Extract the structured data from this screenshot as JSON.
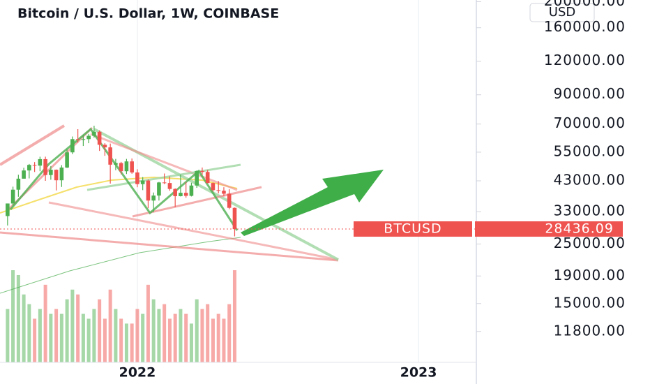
{
  "chart_data": {
    "type": "candlestick",
    "title": "Bitcoin / U.S. Dollar, 1W, COINBASE",
    "currency": "USD",
    "symbol": "BTCUSD",
    "last_price": 28436.09,
    "log_scale": true,
    "xgrid": true,
    "ygrid": false,
    "up_color": "#4caf50",
    "down_color": "#ef5350",
    "xlim": [
      -1.4,
      86.7
    ],
    "xticks": [
      {
        "value": 24,
        "label": "2022"
      },
      {
        "value": 76,
        "label": "2023"
      }
    ],
    "ylim": [
      9000,
      203000
    ],
    "yticks": [
      {
        "value": 200000,
        "label": "200000.00"
      },
      {
        "value": 160000,
        "label": "160000.00"
      },
      {
        "value": 120000,
        "label": "120000.00"
      },
      {
        "value": 90000,
        "label": "90000.00"
      },
      {
        "value": 70000,
        "label": "70000.00"
      },
      {
        "value": 55000,
        "label": "55000.00"
      },
      {
        "value": 43000,
        "label": "43000.00"
      },
      {
        "value": 33000,
        "label": "33000.00"
      },
      {
        "value": 25000,
        "label": "25000.00"
      },
      {
        "value": 19000,
        "label": "19000.00"
      },
      {
        "value": 15000,
        "label": "15000.00"
      },
      {
        "value": 11800,
        "label": "11800.00"
      }
    ],
    "open": [
      31780,
      35400,
      39850,
      43800,
      47000,
      49300,
      49000,
      51800,
      45200,
      47300,
      43200,
      48200,
      54900,
      61500,
      61100,
      61500,
      63300,
      65500,
      58600,
      57300,
      49400,
      50100,
      46700,
      50800,
      46200,
      41800,
      43100,
      36300,
      37900,
      42400,
      42200,
      40100,
      37700,
      38800,
      37800,
      41300,
      46800,
      46400,
      42200,
      39700,
      39500,
      38500,
      34100
    ],
    "high": [
      35400,
      40900,
      45300,
      48100,
      49700,
      50500,
      52900,
      52900,
      48800,
      47400,
      49200,
      56600,
      62900,
      67000,
      63700,
      64300,
      69000,
      66300,
      59400,
      59200,
      51900,
      50600,
      51900,
      52100,
      47500,
      44400,
      43500,
      38900,
      42600,
      45800,
      44700,
      40300,
      45400,
      42600,
      42300,
      47000,
      48200,
      47200,
      42400,
      42900,
      40700,
      40000,
      34200
    ],
    "low": [
      29300,
      34700,
      37500,
      43800,
      43900,
      46400,
      46700,
      43000,
      43400,
      39600,
      40800,
      48000,
      54100,
      59700,
      58000,
      59400,
      62300,
      55600,
      53300,
      42000,
      47100,
      45500,
      45600,
      45700,
      40700,
      39700,
      34000,
      32900,
      36300,
      41800,
      39500,
      34300,
      37600,
      37200,
      37600,
      40500,
      45200,
      42100,
      39200,
      38600,
      37700,
      33700,
      26700
    ],
    "close": [
      35400,
      39850,
      43800,
      47000,
      49300,
      49000,
      51800,
      45200,
      47300,
      43200,
      48200,
      54900,
      61500,
      61100,
      61500,
      63300,
      65500,
      58600,
      57300,
      49400,
      50100,
      46700,
      50800,
      46200,
      41800,
      43100,
      36300,
      37900,
      42400,
      42200,
      40100,
      37700,
      38800,
      37800,
      41300,
      46800,
      46400,
      42200,
      39700,
      39500,
      38500,
      34100,
      28436.09
    ],
    "volume": [
      55,
      95,
      90,
      70,
      60,
      45,
      55,
      80,
      50,
      55,
      50,
      65,
      75,
      70,
      50,
      45,
      55,
      65,
      45,
      75,
      55,
      45,
      40,
      40,
      55,
      50,
      80,
      65,
      55,
      60,
      45,
      50,
      55,
      50,
      40,
      65,
      55,
      60,
      45,
      50,
      45,
      60,
      95
    ]
  }
}
